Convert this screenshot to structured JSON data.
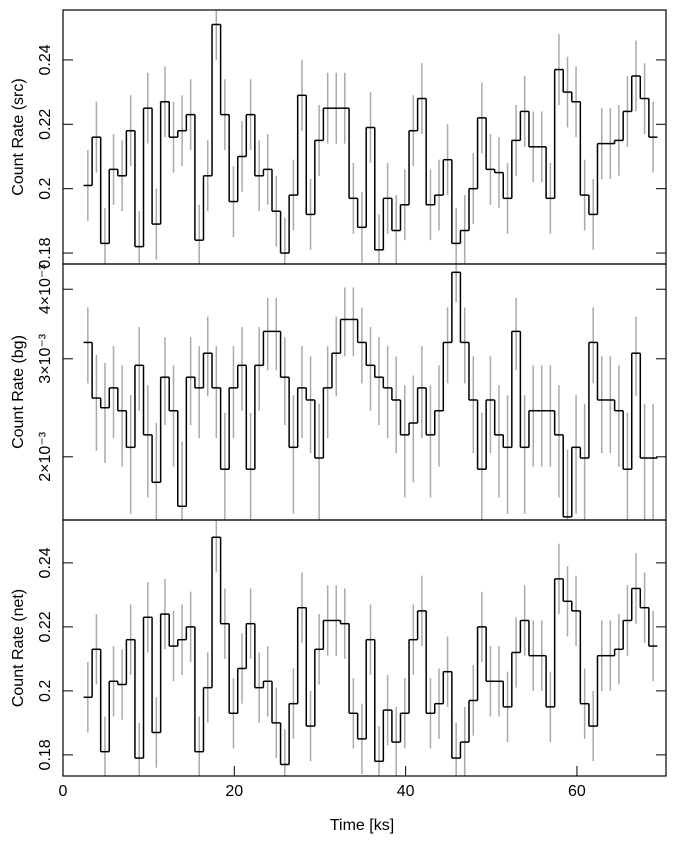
{
  "chart_data": {
    "type": "step",
    "xlabel": "Time [ks]",
    "xlim": [
      0,
      70.4
    ],
    "xticks": [
      0,
      20,
      40,
      60
    ],
    "color": "#000000",
    "error_color": "#aaaaaa",
    "bins": [
      2.4,
      3.4,
      4.4,
      5.4,
      6.4,
      7.4,
      8.4,
      9.4,
      10.4,
      11.4,
      12.4,
      13.4,
      14.4,
      15.4,
      16.4,
      17.4,
      18.4,
      19.4,
      20.4,
      21.4,
      22.4,
      23.4,
      24.4,
      25.4,
      26.4,
      27.4,
      28.4,
      29.4,
      30.4,
      31.4,
      32.4,
      33.4,
      34.4,
      35.4,
      36.4,
      37.4,
      38.4,
      39.4,
      40.4,
      41.4,
      42.4,
      43.4,
      44.4,
      45.4,
      46.4,
      47.4,
      48.4,
      49.4,
      50.4,
      51.4,
      52.4,
      53.4,
      54.4,
      55.4,
      56.4,
      57.4,
      58.4,
      59.4,
      60.4,
      61.4,
      62.4,
      63.4,
      64.4,
      65.4,
      66.4,
      67.4,
      68.4,
      69.4
    ],
    "panels": [
      {
        "ylabel": "Count Rate (src)",
        "ylim": [
          0.1766,
          0.2555
        ],
        "yticks": [
          0.18,
          0.2,
          0.22,
          0.24
        ],
        "log": false,
        "values": [
          0.201,
          0.216,
          0.183,
          0.206,
          0.204,
          0.218,
          0.182,
          0.225,
          0.189,
          0.227,
          0.216,
          0.218,
          0.223,
          0.184,
          0.204,
          0.251,
          0.223,
          0.196,
          0.21,
          0.223,
          0.204,
          0.206,
          0.193,
          0.18,
          0.198,
          0.229,
          0.192,
          0.215,
          0.225,
          0.225,
          0.225,
          0.197,
          0.188,
          0.219,
          0.181,
          0.197,
          0.187,
          0.195,
          0.218,
          0.228,
          0.195,
          0.198,
          0.209,
          0.183,
          0.187,
          0.2,
          0.222,
          0.206,
          0.205,
          0.197,
          0.215,
          0.224,
          0.213,
          0.213,
          0.197,
          0.237,
          0.23,
          0.227,
          0.198,
          0.192,
          0.214,
          0.214,
          0.215,
          0.224,
          0.235,
          0.228,
          0.216
        ],
        "errors": [
          0.011,
          0.011,
          0.011,
          0.011,
          0.011,
          0.011,
          0.011,
          0.011,
          0.011,
          0.011,
          0.011,
          0.011,
          0.011,
          0.011,
          0.011,
          0.011,
          0.011,
          0.011,
          0.011,
          0.011,
          0.011,
          0.011,
          0.011,
          0.011,
          0.011,
          0.011,
          0.011,
          0.011,
          0.011,
          0.011,
          0.011,
          0.011,
          0.011,
          0.011,
          0.011,
          0.011,
          0.011,
          0.011,
          0.011,
          0.011,
          0.011,
          0.011,
          0.011,
          0.011,
          0.011,
          0.011,
          0.011,
          0.011,
          0.011,
          0.011,
          0.011,
          0.011,
          0.011,
          0.011,
          0.011,
          0.011,
          0.011,
          0.011,
          0.011,
          0.011,
          0.011,
          0.011,
          0.011,
          0.011,
          0.011,
          0.011,
          0.011
        ]
      },
      {
        "ylabel": "Count Rate (bg)",
        "ylim": [
          0.00154,
          0.00444
        ],
        "log": true,
        "yticks": [
          {
            "value": 0.002,
            "label": "2×10⁻³"
          },
          {
            "value": 0.003,
            "label": "3×10⁻³"
          },
          {
            "value": 0.004,
            "label": "4×10⁻³"
          }
        ],
        "values": [
          0.00321,
          0.00255,
          0.00245,
          0.00266,
          0.00242,
          0.00208,
          0.00292,
          0.00219,
          0.0018,
          0.00278,
          0.00242,
          0.00163,
          0.00278,
          0.00266,
          0.00307,
          0.00266,
          0.0019,
          0.00266,
          0.00292,
          0.0019,
          0.00292,
          0.00336,
          0.00336,
          0.00278,
          0.00208,
          0.00266,
          0.00253,
          0.00199,
          0.00266,
          0.00307,
          0.00353,
          0.00353,
          0.00321,
          0.00292,
          0.00278,
          0.00266,
          0.00253,
          0.00219,
          0.0023,
          0.00266,
          0.00219,
          0.00242,
          0.00321,
          0.00429,
          0.00321,
          0.00253,
          0.0019,
          0.00253,
          0.00219,
          0.00208,
          0.00336,
          0.00208,
          0.00242,
          0.00242,
          0.00242,
          0.00219,
          0.00156,
          0.00208,
          0.00199,
          0.00321,
          0.00253,
          0.00253,
          0.00242,
          0.0019,
          0.00307,
          0.00199,
          0.00199
        ],
        "errors": [
          0.0005,
          0.0005,
          0.0005,
          0.0005,
          0.0005,
          0.0005,
          0.0005,
          0.0005,
          0.0005,
          0.0005,
          0.0005,
          0.0005,
          0.0005,
          0.0005,
          0.0005,
          0.0005,
          0.0005,
          0.0005,
          0.0005,
          0.0005,
          0.0005,
          0.0005,
          0.0005,
          0.0005,
          0.0005,
          0.0005,
          0.0005,
          0.0005,
          0.0005,
          0.0005,
          0.0005,
          0.0005,
          0.0005,
          0.0005,
          0.0005,
          0.0005,
          0.0005,
          0.0005,
          0.0005,
          0.0005,
          0.0005,
          0.0005,
          0.0005,
          0.0005,
          0.0005,
          0.0005,
          0.0005,
          0.0005,
          0.0005,
          0.0005,
          0.0005,
          0.0005,
          0.0005,
          0.0005,
          0.0005,
          0.0005,
          0.0005,
          0.0005,
          0.0005,
          0.0005,
          0.0005,
          0.0005,
          0.0005,
          0.0005,
          0.0005,
          0.0005,
          0.0005
        ]
      },
      {
        "ylabel": "Count Rate (net)",
        "ylim": [
          0.1734,
          0.2534
        ],
        "yticks": [
          0.18,
          0.2,
          0.22,
          0.24
        ],
        "log": false,
        "values": [
          0.198,
          0.213,
          0.181,
          0.203,
          0.202,
          0.216,
          0.179,
          0.223,
          0.187,
          0.224,
          0.214,
          0.216,
          0.22,
          0.181,
          0.201,
          0.248,
          0.221,
          0.193,
          0.207,
          0.221,
          0.201,
          0.203,
          0.19,
          0.177,
          0.196,
          0.226,
          0.189,
          0.213,
          0.222,
          0.222,
          0.221,
          0.193,
          0.185,
          0.216,
          0.178,
          0.194,
          0.184,
          0.193,
          0.216,
          0.225,
          0.193,
          0.196,
          0.206,
          0.179,
          0.184,
          0.197,
          0.22,
          0.203,
          0.203,
          0.195,
          0.212,
          0.222,
          0.211,
          0.211,
          0.195,
          0.235,
          0.228,
          0.225,
          0.196,
          0.189,
          0.211,
          0.211,
          0.213,
          0.222,
          0.232,
          0.226,
          0.214
        ],
        "errors": [
          0.011,
          0.011,
          0.011,
          0.011,
          0.011,
          0.011,
          0.011,
          0.011,
          0.011,
          0.011,
          0.011,
          0.011,
          0.011,
          0.011,
          0.011,
          0.011,
          0.011,
          0.011,
          0.011,
          0.011,
          0.011,
          0.011,
          0.011,
          0.011,
          0.011,
          0.011,
          0.011,
          0.011,
          0.011,
          0.011,
          0.011,
          0.011,
          0.011,
          0.011,
          0.011,
          0.011,
          0.011,
          0.011,
          0.011,
          0.011,
          0.011,
          0.011,
          0.011,
          0.011,
          0.011,
          0.011,
          0.011,
          0.011,
          0.011,
          0.011,
          0.011,
          0.011,
          0.011,
          0.011,
          0.011,
          0.011,
          0.011,
          0.011,
          0.011,
          0.011,
          0.011,
          0.011,
          0.011,
          0.011,
          0.011,
          0.011,
          0.011
        ]
      }
    ]
  }
}
